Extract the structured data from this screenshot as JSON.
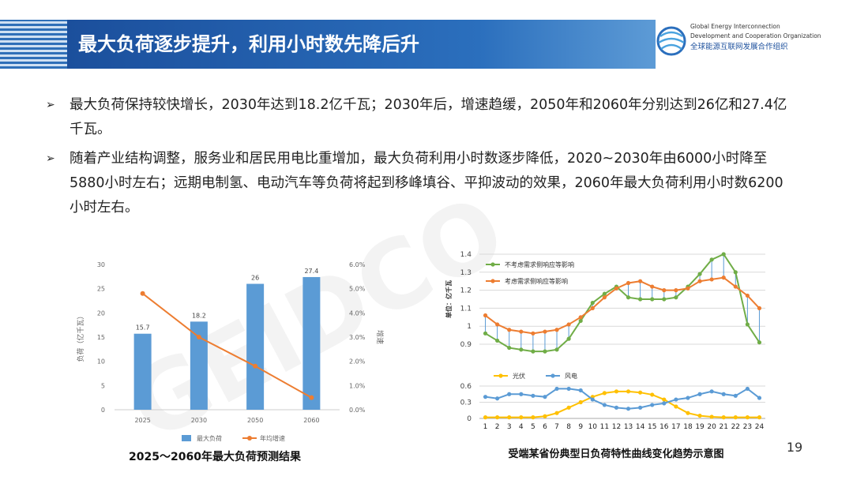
{
  "header": {
    "title": "最大负荷逐步提升，利用小时数先降后升"
  },
  "logo": {
    "line1": "Global Energy Interconnection",
    "line2": "Development and Cooperation Organization",
    "line3": "全球能源互联网发展合作组织"
  },
  "watermark": "GEIDCO",
  "bullets": [
    "最大负荷保持较快增长，2030年达到18.2亿千瓦；2030年后，增速趋缓，2050年和2060年分别达到26亿和27.4亿千瓦。",
    "随着产业结构调整，服务业和居民用电比重增加，最大负荷利用小时数逐步降低，2020~2030年由6000小时降至5880小时左右；远期电制氢、电动汽车等负荷将起到移峰填谷、平抑波动的效果，2060年最大负荷利用小时数6200小时左右。"
  ],
  "chart_data": [
    {
      "type": "bar",
      "title": "2025～2060年最大负荷预测结果",
      "categories": [
        "2025",
        "2030",
        "2050",
        "2060"
      ],
      "series": [
        {
          "name": "最大负荷",
          "color": "#5b9bd5",
          "values": [
            15.7,
            18.2,
            26,
            27.4
          ]
        },
        {
          "name": "年均增速",
          "type": "line",
          "axis": "y2",
          "color": "#ed7d31",
          "values": [
            4.8,
            3.0,
            1.8,
            0.5
          ]
        }
      ],
      "ylabel": "负荷（亿千瓦）",
      "y2label": "增速",
      "ylim": [
        0,
        30
      ],
      "yticks": [
        0,
        5,
        10,
        15,
        20,
        25,
        30
      ],
      "y2lim": [
        0,
        6
      ],
      "y2ticks": [
        {
          "value": 0,
          "label": "0.0%"
        },
        {
          "value": 1,
          "label": "1.0%"
        },
        {
          "value": 2,
          "label": "2.0%"
        },
        {
          "value": 3,
          "label": "3.0%"
        },
        {
          "value": 4,
          "label": "4.0%"
        },
        {
          "value": 5,
          "label": "5.0%"
        },
        {
          "value": 6,
          "label": "6.0%"
        }
      ],
      "legend": "bottom",
      "grid": false
    },
    {
      "type": "line",
      "title": "受端某省份典型日负荷特性曲线变化趋势示意图",
      "ylabel": "单位：亿千瓦",
      "x": [
        1,
        2,
        3,
        4,
        5,
        6,
        7,
        8,
        9,
        10,
        11,
        12,
        13,
        14,
        15,
        16,
        17,
        18,
        19,
        20,
        21,
        22,
        23,
        24
      ],
      "xlim": [
        0.5,
        24.5
      ],
      "series": [
        {
          "name": "不考虑需求侧响应等影响",
          "color": "#70ad47",
          "values": [
            0.96,
            0.92,
            0.88,
            0.87,
            0.86,
            0.86,
            0.87,
            0.93,
            1.03,
            1.13,
            1.18,
            1.22,
            1.16,
            1.15,
            1.15,
            1.15,
            1.16,
            1.22,
            1.29,
            1.37,
            1.4,
            1.3,
            1.01,
            0.91
          ]
        },
        {
          "name": "考虑需求侧响应等影响",
          "color": "#ed7d31",
          "values": [
            1.06,
            1.01,
            0.98,
            0.97,
            0.96,
            0.97,
            0.98,
            1.01,
            1.05,
            1.1,
            1.16,
            1.21,
            1.24,
            1.25,
            1.22,
            1.2,
            1.2,
            1.21,
            1.25,
            1.26,
            1.27,
            1.22,
            1.17,
            1.1
          ]
        }
      ],
      "ylim": [
        0.9,
        1.4
      ],
      "yticks": [
        0.9,
        1,
        1.1,
        1.2,
        1.3,
        1.4
      ],
      "legend": "top-left",
      "grid": true,
      "drop_lines": true
    },
    {
      "type": "line",
      "x": [
        1,
        2,
        3,
        4,
        5,
        6,
        7,
        8,
        9,
        10,
        11,
        12,
        13,
        14,
        15,
        16,
        17,
        18,
        19,
        20,
        21,
        22,
        23,
        24
      ],
      "xlim": [
        0.5,
        24.5
      ],
      "xticks": [
        1,
        2,
        3,
        4,
        5,
        6,
        7,
        8,
        9,
        10,
        11,
        12,
        13,
        14,
        15,
        16,
        17,
        18,
        19,
        20,
        21,
        22,
        23,
        24
      ],
      "series": [
        {
          "name": "光伏",
          "color": "#ffc000",
          "values": [
            0.02,
            0.02,
            0.02,
            0.02,
            0.02,
            0.04,
            0.1,
            0.2,
            0.3,
            0.4,
            0.47,
            0.5,
            0.5,
            0.48,
            0.44,
            0.35,
            0.22,
            0.1,
            0.05,
            0.03,
            0.02,
            0.02,
            0.02,
            0.02
          ]
        },
        {
          "name": "风电",
          "color": "#5b9bd5",
          "values": [
            0.4,
            0.37,
            0.45,
            0.45,
            0.42,
            0.4,
            0.55,
            0.55,
            0.52,
            0.35,
            0.25,
            0.2,
            0.18,
            0.2,
            0.25,
            0.28,
            0.35,
            0.38,
            0.45,
            0.5,
            0.45,
            0.42,
            0.55,
            0.38
          ]
        }
      ],
      "ylim": [
        0,
        0.6
      ],
      "yticks": [
        0,
        0.3,
        0.6
      ],
      "legend": "top",
      "grid": true
    }
  ],
  "page_number": "19"
}
